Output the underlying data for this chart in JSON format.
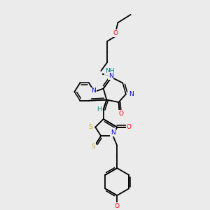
{
  "bg_color": "#ebebeb",
  "bond_color": "#000000",
  "atom_colors": {
    "N": "#0000cd",
    "O": "#ff0000",
    "S": "#ccaa00",
    "NH": "#008080",
    "H": "#008080",
    "C": "#000000"
  }
}
